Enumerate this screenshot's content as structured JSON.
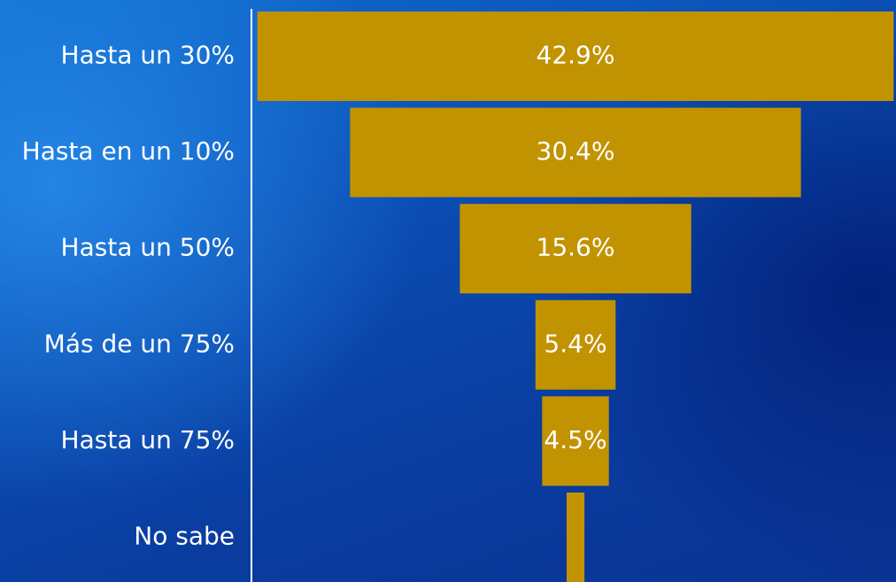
{
  "chart_data": {
    "type": "bar",
    "orientation": "horizontal-funnel",
    "categories": [
      "Hasta un 30%",
      "Hasta en un 10%",
      "Hasta un 50%",
      "Más de un 75%",
      "Hasta un 75%",
      "No sabe"
    ],
    "values": [
      42.9,
      30.4,
      15.6,
      5.4,
      4.5,
      1.2
    ],
    "value_labels": [
      "42.9%",
      "30.4%",
      "15.6%",
      "5.4%",
      "4.5%",
      ""
    ],
    "title": "",
    "xlabel": "",
    "ylabel": "",
    "bar_color": "#c19300",
    "label_color": "#ffffff",
    "grid": false,
    "legend": "none"
  }
}
